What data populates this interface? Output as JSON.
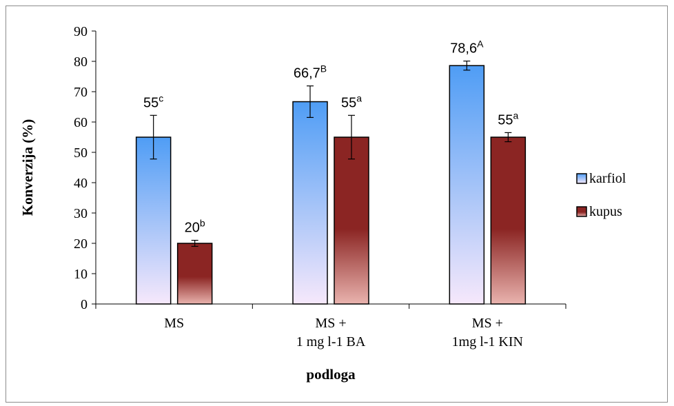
{
  "chart_data": {
    "type": "bar",
    "xlabel": "podloga",
    "ylabel": "Konverzija (%)",
    "ylim": [
      0,
      90
    ],
    "yticks": [
      0,
      10,
      20,
      30,
      40,
      50,
      60,
      70,
      80,
      90
    ],
    "categories": [
      [
        "MS"
      ],
      [
        "MS +",
        "1 mg l-1 BA"
      ],
      [
        "MS +",
        "1mg l-1 KIN"
      ]
    ],
    "legend_position": "right",
    "grid": false,
    "series": [
      {
        "name": "karfiol",
        "color_top": "#4f9df5",
        "color_bottom": "#f6e8fb",
        "values": [
          55,
          66.7,
          78.6
        ],
        "errors": [
          7.2,
          5.2,
          1.5
        ],
        "labels": [
          "55",
          "66,7",
          "78,6"
        ],
        "letters": [
          "c",
          "B",
          "A"
        ]
      },
      {
        "name": "kupus",
        "color_top": "#8b2523",
        "color_bottom": "#e9b3ae",
        "values": [
          20,
          55,
          55
        ],
        "errors": [
          1,
          7.2,
          1.5
        ],
        "labels": [
          "20",
          "55",
          "55"
        ],
        "letters": [
          "b",
          "a",
          "a"
        ]
      }
    ]
  }
}
